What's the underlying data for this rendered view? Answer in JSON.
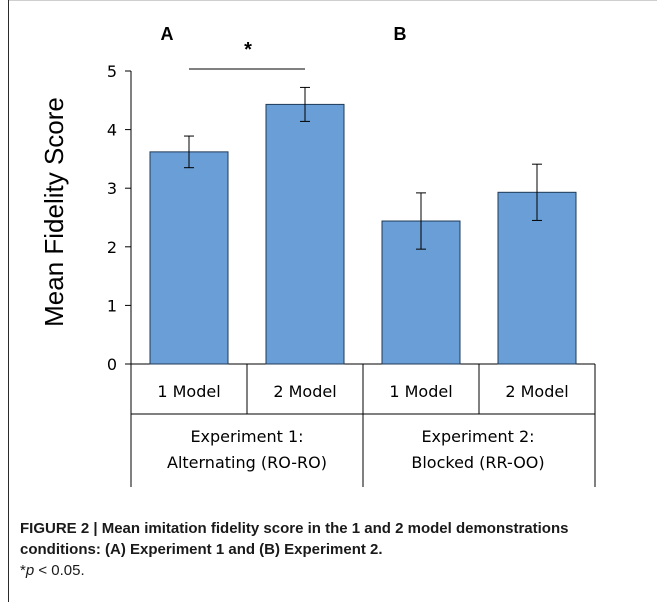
{
  "chart_data": {
    "type": "bar",
    "ylabel": "Mean Fidelity Score",
    "ylim": [
      0,
      5
    ],
    "yticks": [
      0,
      1,
      2,
      3,
      4,
      5
    ],
    "bar_color": "#6a9ed6",
    "bar_edge_color": "#1f3a57",
    "categories": [
      "1 Model",
      "2 Model",
      "1 Model",
      "2 Model"
    ],
    "values": [
      3.62,
      4.43,
      2.44,
      2.93
    ],
    "errors": [
      0.27,
      0.29,
      0.48,
      0.48
    ],
    "groups": [
      {
        "panel": "A",
        "line1": "Experiment 1:",
        "line2": "Alternating (RO-RO)"
      },
      {
        "panel": "B",
        "line1": "Experiment 2:",
        "line2": "Blocked (RR-OO)"
      }
    ],
    "significance": {
      "label": "*",
      "between": [
        0,
        1
      ]
    }
  },
  "caption": {
    "bold_text": "FIGURE 2 | Mean imitation fidelity score in the 1 and 2 model demonstrations conditions: (A) Experiment 1 and (B) Experiment 2.",
    "star": "*",
    "p_symbol": "p",
    "rest": " < 0.05."
  }
}
